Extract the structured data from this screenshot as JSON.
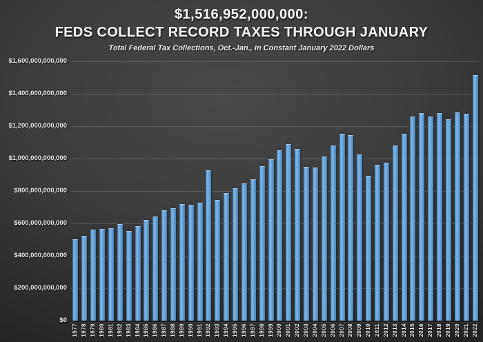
{
  "title": {
    "line1": "$1,516,952,000,000:",
    "line2": "FEDS COLLECT RECORD TAXES THROUGH JANUARY",
    "subtitle": "Total Federal Tax Collections, Oct.-Jan., in Constant January 2022 Dollars"
  },
  "chart_data": {
    "type": "bar",
    "title": "$1,516,952,000,000: FEDS COLLECT RECORD TAXES THROUGH JANUARY",
    "subtitle": "Total Federal Tax Collections, Oct.-Jan., in Constant January 2022 Dollars",
    "xlabel": "",
    "ylabel": "",
    "unit": "billions of constant January 2022 U.S. dollars",
    "ylim": [
      0,
      1600
    ],
    "ytick_step": 200,
    "ytick_labels": [
      "$0",
      "$200,000,000,000",
      "$400,000,000,000",
      "$600,000,000,000",
      "$800,000,000,000",
      "$1,000,000,000,000",
      "$1,200,000,000,000",
      "$1,400,000,000,000",
      "$1,600,000,000,000"
    ],
    "grid": true,
    "legend": null,
    "bar_color": "#5b9bd5",
    "background_color": "#3c3c3c",
    "highlight_value_2022": "$1,516,952,000,000",
    "categories": [
      "1977",
      "1978",
      "1979",
      "1980",
      "1981",
      "1982",
      "1983",
      "1984",
      "1985",
      "1986",
      "1987",
      "1988",
      "1989",
      "1990",
      "1991",
      "1992",
      "1993",
      "1994",
      "1995",
      "1996",
      "1997",
      "1998",
      "1999",
      "2000",
      "2001",
      "2002",
      "2003",
      "2004",
      "2005",
      "2006",
      "2007",
      "2008",
      "2009",
      "2010",
      "2011",
      "2012",
      "2013",
      "2014",
      "2015",
      "2016",
      "2017",
      "2018",
      "2019",
      "2020",
      "2021",
      "2022"
    ],
    "values_billions": [
      501,
      522,
      562,
      565,
      569,
      594,
      554,
      583,
      623,
      644,
      683,
      692,
      720,
      717,
      728,
      929,
      743,
      786,
      819,
      849,
      874,
      954,
      995,
      1051,
      1088,
      1061,
      950,
      943,
      1011,
      1079,
      1154,
      1146,
      1026,
      893,
      961,
      976,
      1082,
      1154,
      1260,
      1283,
      1258,
      1283,
      1241,
      1285,
      1277,
      1516.952
    ]
  }
}
